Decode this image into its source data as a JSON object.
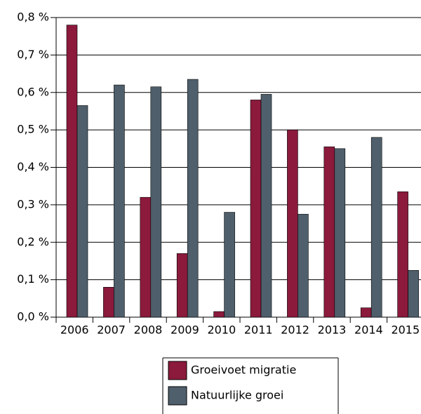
{
  "chart_data": {
    "type": "bar",
    "categories": [
      "2006",
      "2007",
      "2008",
      "2009",
      "2010",
      "2011",
      "2012",
      "2013",
      "2014",
      "2015"
    ],
    "series": [
      {
        "name": "Groeivoet migratie",
        "color": "#8b1a3c",
        "values": [
          0.78,
          0.08,
          0.32,
          0.17,
          0.015,
          0.58,
          0.5,
          0.455,
          0.025,
          0.335
        ]
      },
      {
        "name": "Natuurlijke groei",
        "color": "#4f5f6b",
        "values": [
          0.565,
          0.62,
          0.615,
          0.635,
          0.28,
          0.595,
          0.275,
          0.45,
          0.48,
          0.125
        ]
      }
    ],
    "ylim": [
      0,
      0.8
    ],
    "yticks": [
      {
        "value": 0,
        "label": "0,0 %"
      },
      {
        "value": 0.1,
        "label": "0,1 %"
      },
      {
        "value": 0.2,
        "label": "0,2 %"
      },
      {
        "value": 0.3,
        "label": "0,3 %"
      },
      {
        "value": 0.4,
        "label": "0,4 %"
      },
      {
        "value": 0.5,
        "label": "0,5 %"
      },
      {
        "value": 0.6,
        "label": "0,6 %"
      },
      {
        "value": 0.7,
        "label": "0,7 %"
      },
      {
        "value": 0.8,
        "label": "0,8 %"
      }
    ],
    "grid": true
  }
}
